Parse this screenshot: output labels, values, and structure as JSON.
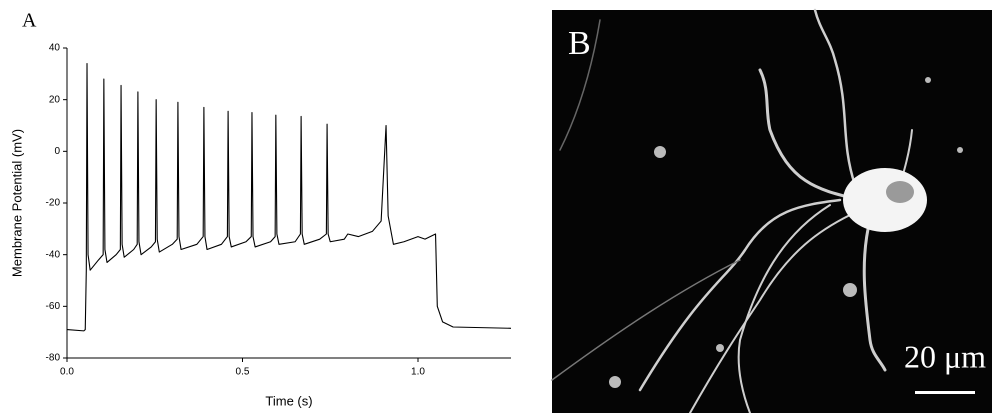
{
  "chart_data": {
    "type": "line",
    "panel_label": "A",
    "xlabel": "Time (s)",
    "ylabel": "Membrane Potential (mV)",
    "xlim": [
      0,
      1.265
    ],
    "ylim": [
      -80,
      40
    ],
    "xticks": [
      {
        "value": 0,
        "label": "0.0"
      },
      0.5,
      {
        "value": 1,
        "label": "1.0"
      }
    ],
    "yticks": [
      -80,
      -60,
      -40,
      -20,
      0,
      20,
      40
    ],
    "color": "#000000",
    "x": [
      0,
      0.048,
      0.052,
      0.055,
      0.057,
      0.06,
      0.066,
      0.09,
      0.103,
      0.105,
      0.108,
      0.114,
      0.14,
      0.152,
      0.154,
      0.157,
      0.163,
      0.19,
      0.2,
      0.202,
      0.205,
      0.211,
      0.24,
      0.252,
      0.254,
      0.257,
      0.263,
      0.3,
      0.314,
      0.316,
      0.319,
      0.325,
      0.37,
      0.388,
      0.39,
      0.393,
      0.399,
      0.44,
      0.457,
      0.459,
      0.462,
      0.468,
      0.51,
      0.525,
      0.527,
      0.53,
      0.536,
      0.58,
      0.593,
      0.595,
      0.598,
      0.604,
      0.65,
      0.665,
      0.667,
      0.67,
      0.676,
      0.72,
      0.739,
      0.741,
      0.744,
      0.75,
      0.79,
      0.8,
      0.83,
      0.87,
      0.895,
      0.909,
      0.915,
      0.93,
      0.96,
      1.0,
      1.02,
      1.05,
      1.055,
      1.07,
      1.1,
      1.265
    ],
    "values": [
      -69,
      -69.5,
      -69,
      -46,
      34,
      -40,
      -46,
      -42,
      -40,
      28,
      -38,
      -43,
      -40,
      -38,
      25.5,
      -36,
      -41,
      -38,
      -36,
      23,
      -35,
      -40,
      -37,
      -35,
      20,
      -34,
      -39,
      -36,
      -34,
      19,
      -33,
      -38,
      -36,
      -33,
      17,
      -33,
      -38,
      -36,
      -33,
      15.5,
      -33,
      -37,
      -35,
      -33,
      15,
      -33,
      -37,
      -35,
      -33,
      14,
      -32,
      -36,
      -35,
      -32,
      13.5,
      -32,
      -36,
      -34,
      -32,
      10.5,
      -32,
      -35,
      -34,
      -32,
      -33,
      -31,
      -27,
      10,
      -25,
      -36,
      -35,
      -33,
      -34,
      -32,
      -60,
      -66,
      -68,
      -68.5
    ]
  },
  "image_panel": {
    "label": "B",
    "scale_bar": "20 μm"
  }
}
